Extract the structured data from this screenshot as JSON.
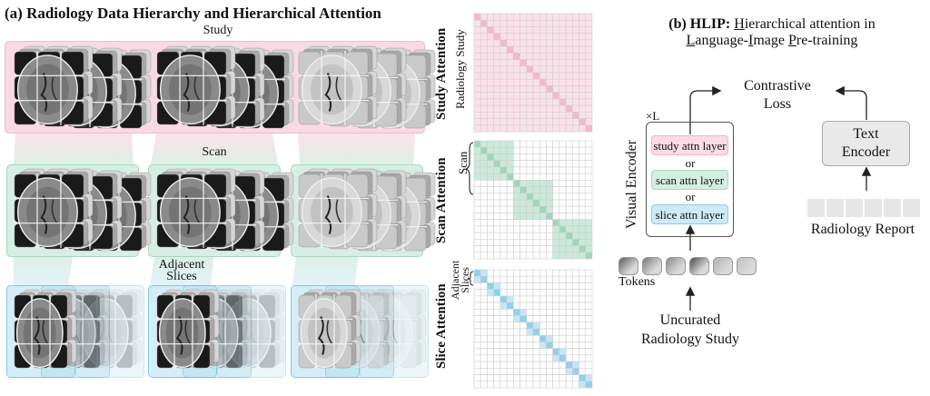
{
  "panel_a": {
    "title": "(a) Radiology Data Hierarchy and Hierarchical Attention",
    "study_label": "Study",
    "scan_label": "Scan",
    "adjacent_slices_label_1": "Adjacent",
    "adjacent_slices_label_2": "Slices",
    "scans": [
      {
        "plane": "sagittal",
        "tone": "dark"
      },
      {
        "plane": "axial",
        "tone": "dark"
      },
      {
        "plane": "coronal",
        "tone": "light"
      }
    ]
  },
  "attention": {
    "grid_size": 18,
    "study": {
      "title": "Study Attention",
      "sublabel": "Radiology Study",
      "color": "#f5c6d6",
      "bg": "#fbe0ea",
      "diag": "#f2b8cc",
      "block_size": 18
    },
    "scan": {
      "title": "Scan Attention",
      "sublabel": "Scan",
      "color": "#c9e9da",
      "diag": "#9fd6b8",
      "block_size": 6
    },
    "slice": {
      "title": "Slice Attention",
      "sublabel_1": "Adjacent",
      "sublabel_2": "Slices",
      "color": "#c8e6f5",
      "diag": "#8fd0ef",
      "block_size": 2
    }
  },
  "panel_b": {
    "title_bold": "(b) HLIP:",
    "title_line1_prefix": "",
    "title_H": "H",
    "title_line1_rest": "ierarchical attention in",
    "title_L": "L",
    "title_line2_a": "anguage-",
    "title_I": "I",
    "title_line2_b": "mage ",
    "title_P": "P",
    "title_line2_c": "re-training",
    "contrastive_1": "Contrastive",
    "contrastive_2": "Loss",
    "repeat": "×L",
    "visual_encoder": "Visual Encoder",
    "layers": [
      {
        "label": "study attn layer",
        "bg": "#fbdce8",
        "border": "#eeb3c8"
      },
      {
        "label": "scan attn layer",
        "bg": "#d5eee2",
        "border": "#a8d8bf"
      },
      {
        "label": "slice attn layer",
        "bg": "#cdeaf8",
        "border": "#8fcbe8"
      }
    ],
    "or": "or",
    "tokens_label": "Tokens",
    "token_count": 6,
    "input_1": "Uncurated",
    "input_2": "Radiology Study",
    "text_encoder_1": "Text",
    "text_encoder_2": "Encoder",
    "report_label": "Radiology Report",
    "report_token_count": 6
  }
}
